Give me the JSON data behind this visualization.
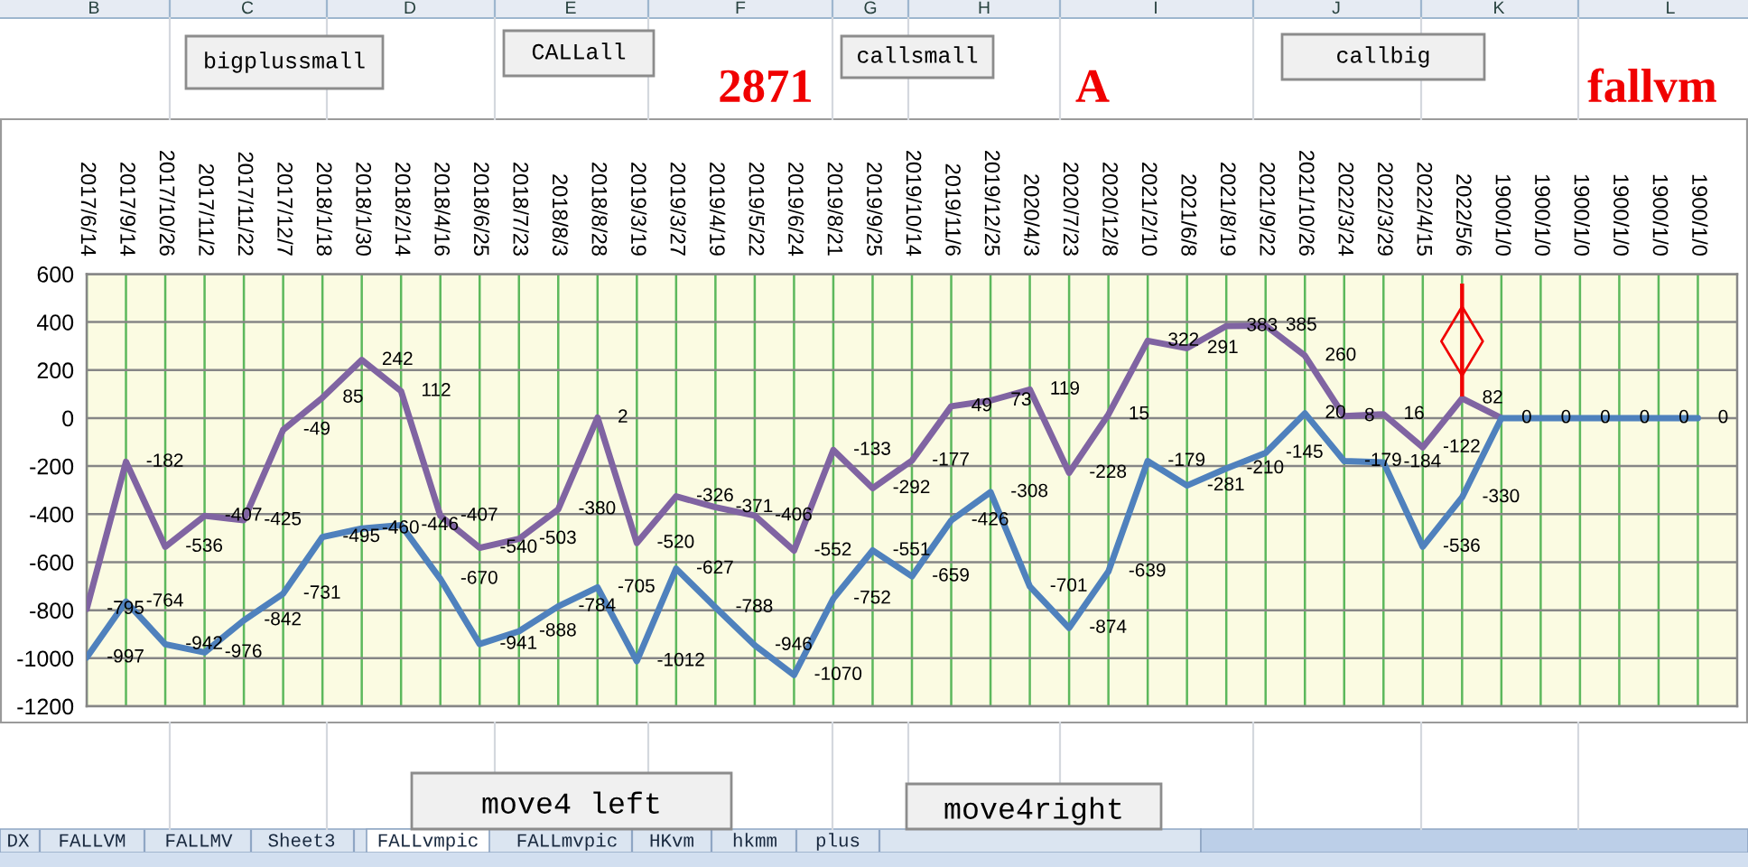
{
  "chart_data": {
    "type": "line",
    "categories": [
      "2017/6/14",
      "2017/9/14",
      "2017/10/26",
      "2017/11/2",
      "2017/11/22",
      "2017/12/7",
      "2018/1/18",
      "2018/1/30",
      "2018/2/14",
      "2018/4/16",
      "2018/6/25",
      "2018/7/23",
      "2018/8/3",
      "2018/8/28",
      "2019/3/19",
      "2019/3/27",
      "2019/4/19",
      "2019/5/22",
      "2019/6/24",
      "2019/8/21",
      "2019/9/25",
      "2019/10/14",
      "2019/11/6",
      "2019/12/25",
      "2020/4/3",
      "2020/7/23",
      "2020/12/8",
      "2021/2/10",
      "2021/6/8",
      "2021/8/19",
      "2021/9/22",
      "2021/10/26",
      "2022/3/24",
      "2022/3/29",
      "2022/4/15",
      "2022/5/6",
      "1900/1/0",
      "1900/1/0",
      "1900/1/0",
      "1900/1/0",
      "1900/1/0",
      "1900/1/0"
    ],
    "series": [
      {
        "color": "#8064a2",
        "values": [
          -795,
          -182,
          -536,
          -407,
          -425,
          -49,
          85,
          242,
          112,
          -407,
          -540,
          -503,
          -380,
          2,
          -520,
          -326,
          -371,
          -406,
          -552,
          -133,
          -292,
          -177,
          49,
          73,
          119,
          -228,
          15,
          322,
          291,
          383,
          385,
          260,
          8,
          16,
          -122,
          82,
          0,
          null,
          null,
          null,
          null,
          null
        ],
        "value_labels": [
          "-795",
          "-182",
          "-536",
          "-407",
          "-425",
          "-49",
          "85",
          "242",
          "112",
          "-407",
          "-540",
          "-503",
          "-380",
          "2",
          "-520",
          "-326",
          "-371",
          "-406",
          "-552",
          "-133",
          "-292",
          "-177",
          "49",
          "73",
          "119",
          "-228",
          "15",
          "322",
          "291",
          "383",
          "385",
          "260",
          "8",
          "16",
          "-122",
          "82",
          null,
          null,
          null,
          null,
          null,
          null
        ]
      },
      {
        "color": "#4f81bd",
        "values": [
          -997,
          -764,
          -942,
          -976,
          -842,
          -731,
          -495,
          -460,
          -446,
          -670,
          -941,
          -888,
          -784,
          -705,
          -1012,
          -627,
          -788,
          -946,
          -1070,
          -752,
          -551,
          -659,
          -426,
          -308,
          -701,
          -874,
          -639,
          -179,
          -281,
          -210,
          -145,
          20,
          -179,
          -184,
          -536,
          -330,
          0,
          0,
          0,
          0,
          0,
          0
        ],
        "value_labels": [
          "-997",
          "-764",
          "-942",
          "-976",
          "-842",
          "-731",
          "-495",
          "-460",
          "-446",
          "-670",
          "-941",
          "-888",
          "-784",
          "-705",
          "-1012",
          "-627",
          "-788",
          "-946",
          "-1070",
          "-752",
          "-551",
          "-659",
          "-426",
          "-308",
          "-701",
          "-874",
          "-639",
          "-179",
          "-281",
          "-210",
          "-145",
          "20",
          "-179",
          "-184",
          "-536",
          "-330",
          "0",
          "0",
          "0",
          "0",
          "0",
          "0"
        ]
      },
      {
        "type": "scatter",
        "color": "#f00000",
        "marker": "diamond",
        "values": [
          null,
          null,
          null,
          null,
          null,
          null,
          null,
          null,
          null,
          null,
          null,
          null,
          null,
          null,
          null,
          null,
          null,
          null,
          null,
          null,
          null,
          null,
          null,
          null,
          null,
          null,
          null,
          null,
          null,
          null,
          null,
          null,
          null,
          null,
          null,
          320,
          null,
          null,
          null,
          null,
          null,
          null
        ],
        "errors": [
          null,
          null,
          null,
          null,
          null,
          null,
          null,
          null,
          null,
          null,
          null,
          null,
          null,
          null,
          null,
          null,
          null,
          null,
          null,
          null,
          null,
          null,
          null,
          null,
          null,
          null,
          null,
          null,
          null,
          null,
          null,
          null,
          null,
          null,
          null,
          [
            90,
            560
          ],
          null,
          null,
          null,
          null,
          null,
          null
        ]
      }
    ],
    "ylim": [
      -1200,
      600
    ],
    "yticks": [
      -1200,
      -1000,
      -800,
      -600,
      -400,
      -200,
      0,
      200,
      400,
      600
    ],
    "grid": true,
    "annotations": [
      "B",
      "C",
      "D",
      "E",
      "F",
      "G",
      "H",
      "I",
      "J",
      "K",
      "L",
      "bigplussmall",
      "CALLall",
      "2871",
      "callsmall",
      "A",
      "callbig",
      "fallvm",
      "move4 left",
      "move4right",
      "DX",
      "FALLVM",
      "FALLMV",
      "Sheet3",
      "FALLvmpic",
      "FALLmvpic",
      "HKvm",
      "hkmm",
      "plus"
    ]
  }
}
